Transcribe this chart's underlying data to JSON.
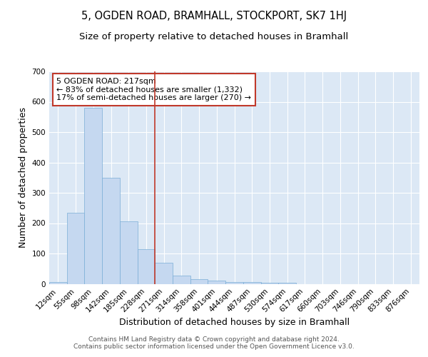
{
  "title": "5, OGDEN ROAD, BRAMHALL, STOCKPORT, SK7 1HJ",
  "subtitle": "Size of property relative to detached houses in Bramhall",
  "xlabel": "Distribution of detached houses by size in Bramhall",
  "ylabel": "Number of detached properties",
  "bar_color": "#c5d8f0",
  "bar_edge_color": "#7aaed6",
  "background_color": "#dce8f5",
  "grid_color": "#ffffff",
  "fig_background": "#ffffff",
  "categories": [
    "12sqm",
    "55sqm",
    "98sqm",
    "142sqm",
    "185sqm",
    "228sqm",
    "271sqm",
    "314sqm",
    "358sqm",
    "401sqm",
    "444sqm",
    "487sqm",
    "530sqm",
    "574sqm",
    "617sqm",
    "660sqm",
    "703sqm",
    "746sqm",
    "790sqm",
    "833sqm",
    "876sqm"
  ],
  "values": [
    7,
    235,
    580,
    350,
    205,
    115,
    70,
    28,
    15,
    10,
    7,
    5,
    4,
    3,
    0,
    0,
    0,
    0,
    0,
    0,
    0
  ],
  "ylim": [
    0,
    700
  ],
  "yticks": [
    0,
    100,
    200,
    300,
    400,
    500,
    600,
    700
  ],
  "vline_x": 5.5,
  "vline_color": "#c0392b",
  "annotation_text": "5 OGDEN ROAD: 217sqm\n← 83% of detached houses are smaller (1,332)\n17% of semi-detached houses are larger (270) →",
  "annotation_box_color": "#ffffff",
  "annotation_box_edge": "#c0392b",
  "footer_text": "Contains HM Land Registry data © Crown copyright and database right 2024.\nContains public sector information licensed under the Open Government Licence v3.0.",
  "title_fontsize": 10.5,
  "subtitle_fontsize": 9.5,
  "axis_label_fontsize": 9,
  "tick_fontsize": 7.5,
  "annotation_fontsize": 8,
  "footer_fontsize": 6.5
}
